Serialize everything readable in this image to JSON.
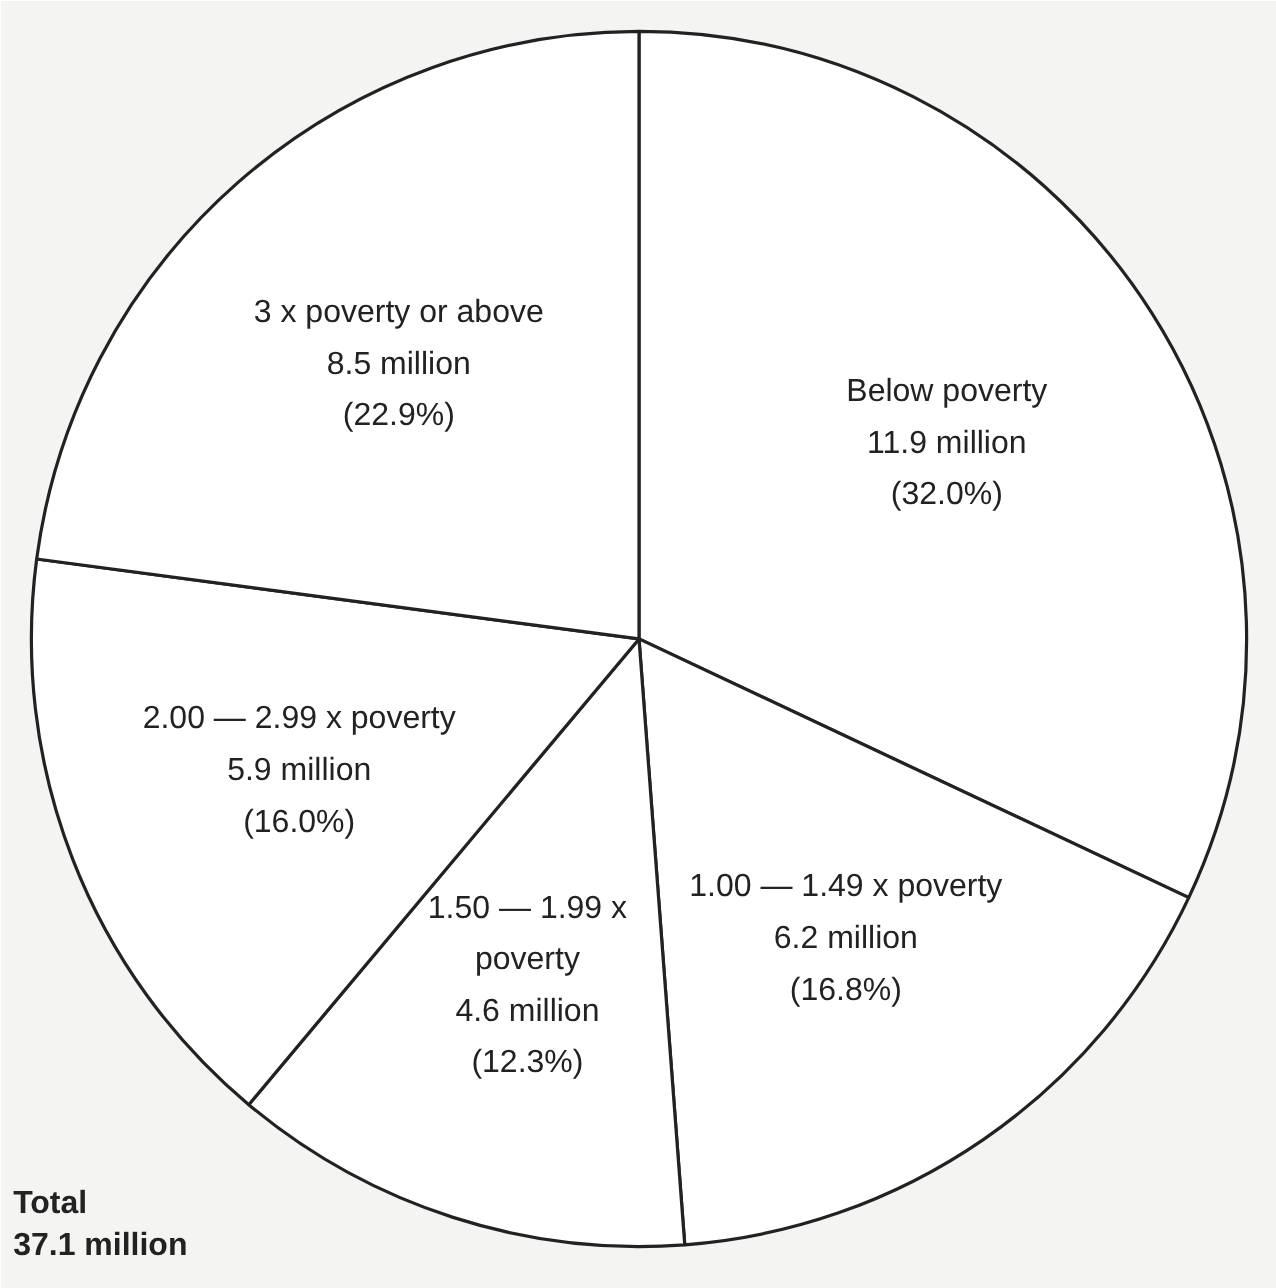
{
  "chart_data": {
    "type": "pie",
    "categories": [
      "Below poverty",
      "1.00 — 1.49 x poverty",
      "1.50 — 1.99 x\npoverty",
      "2.00 — 2.99 x poverty",
      "3 x poverty or above"
    ],
    "values": [
      32.0,
      16.8,
      12.3,
      16.0,
      22.9
    ],
    "value_labels": [
      "11.9 million\n(32.0%)",
      "6.2 million\n(16.8%)",
      "4.6 million\n(12.3%)",
      "5.9 million\n(16.0%)",
      "8.5 million\n(22.9%)"
    ],
    "colors": [
      "#ffffff",
      "#ffffff",
      "#ffffff",
      "#ffffff",
      "#ffffff"
    ],
    "annotations": [
      "Total\n37.1 million"
    ]
  }
}
